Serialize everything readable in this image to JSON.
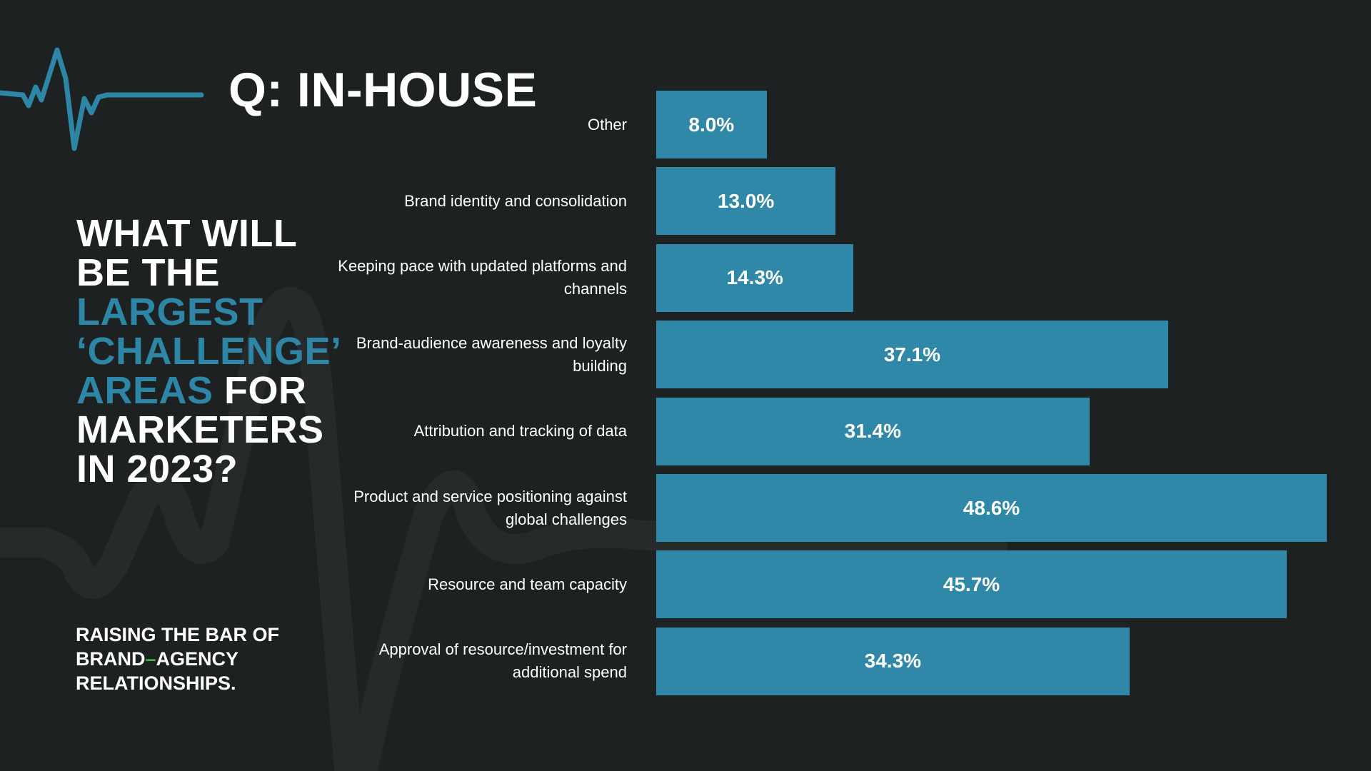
{
  "header": {
    "title": "Q: IN-HOUSE"
  },
  "question": {
    "line1": "WHAT WILL",
    "line2": "BE THE",
    "line3_highlight": "LARGEST",
    "line4_highlight": "‘CHALLENGE’",
    "line5_highlight": "AREAS",
    "line5_rest": " FOR",
    "line6": "MARKETERS",
    "line7": "IN 2023?"
  },
  "tagline": {
    "line1": "RAISING THE BAR OF",
    "line2a": "BRAND",
    "line2_dash": "–",
    "line2b": "AGENCY",
    "line3": "RELATIONSHIPS."
  },
  "colors": {
    "background": "#1e2121",
    "bar": "#2f88a8",
    "accent": "#2e86a6",
    "dash": "#3bbf3b"
  },
  "chart_data": {
    "type": "bar",
    "orientation": "horizontal",
    "categories": [
      "Other",
      "Brand identity and consolidation",
      "Keeping pace with updated platforms and channels",
      "Brand-audience awareness and loyalty building",
      "Attribution and tracking of data",
      "Product and service positioning against global challenges",
      "Resource and team capacity",
      "Approval of resource/investment for additional spend"
    ],
    "values": [
      8.0,
      13.0,
      14.3,
      37.1,
      31.4,
      48.6,
      45.7,
      34.3
    ],
    "value_labels": [
      "8.0%",
      "13.0%",
      "14.3%",
      "37.1%",
      "31.4%",
      "48.6%",
      "45.7%",
      "34.3%"
    ],
    "xlim": [
      0,
      48.6
    ],
    "grid": false
  }
}
